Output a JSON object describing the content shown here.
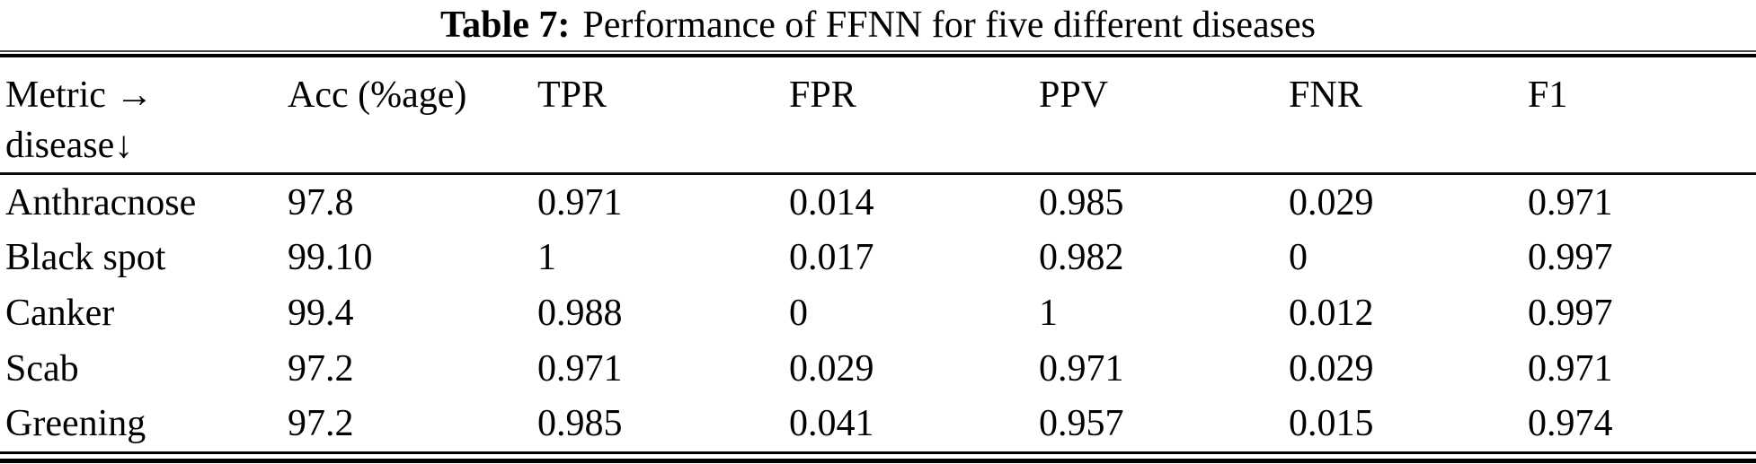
{
  "title": {
    "label": "Table 7:",
    "text": "Performance of FFNN for five different diseases"
  },
  "table": {
    "header": {
      "corner_line1": "Metric →",
      "corner_line2": "disease↓",
      "metrics": [
        "Acc (%age)",
        "TPR",
        "FPR",
        "PPV",
        "FNR",
        "F1"
      ]
    },
    "rows": [
      {
        "disease": "Anthracnose",
        "values": [
          "97.8",
          "0.971",
          "0.014",
          "0.985",
          "0.029",
          "0.971"
        ]
      },
      {
        "disease": "Black spot",
        "values": [
          "99.10",
          "1",
          "0.017",
          "0.982",
          "0",
          "0.997"
        ]
      },
      {
        "disease": "Canker",
        "values": [
          "99.4",
          "0.988",
          "0",
          "1",
          "0.012",
          "0.997"
        ]
      },
      {
        "disease": "Scab",
        "values": [
          "97.2",
          "0.971",
          "0.029",
          "0.971",
          "0.029",
          "0.971"
        ]
      },
      {
        "disease": "Greening",
        "values": [
          "97.2",
          "0.985",
          "0.041",
          "0.957",
          "0.015",
          "0.974"
        ]
      }
    ]
  },
  "colors": {
    "background": "#ffffff",
    "text": "#000000",
    "rule": "#000000"
  }
}
